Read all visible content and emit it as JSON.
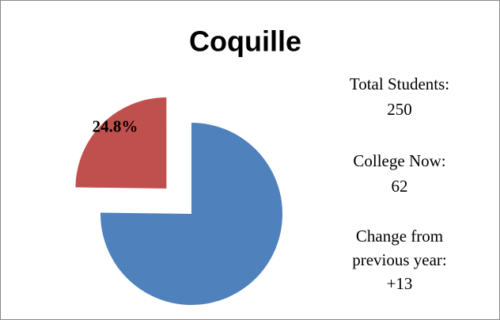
{
  "chart_data": {
    "type": "pie",
    "title": "Coquille",
    "values": [
      75.2,
      24.8
    ],
    "value_labels": [
      null,
      "24.8%"
    ],
    "colors": [
      "#4f81bd",
      "#c0504d"
    ],
    "annotations": [
      "Total Students:",
      "250",
      "College Now:",
      "62",
      "Change from",
      "previous year:",
      "+13"
    ]
  }
}
